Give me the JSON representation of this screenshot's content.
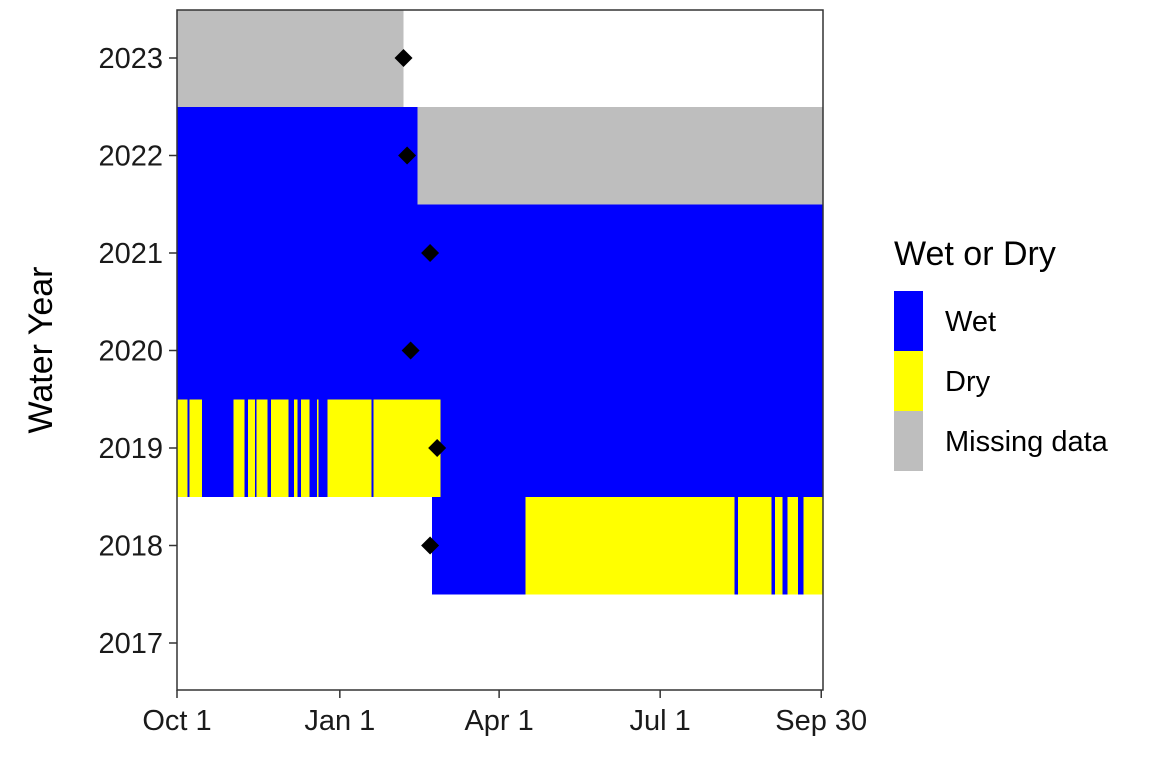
{
  "chart_data": {
    "type": "heatmap",
    "ylabel": "Water Year",
    "xlabel": "",
    "x_ticks": [
      {
        "label": "Oct 1",
        "day": 0
      },
      {
        "label": "Jan 1",
        "day": 92
      },
      {
        "label": "Apr 1",
        "day": 182
      },
      {
        "label": "Jul 1",
        "day": 273
      },
      {
        "label": "Sep 30",
        "day": 364
      }
    ],
    "xlim": [
      0,
      365
    ],
    "years": [
      "2017",
      "2018",
      "2019",
      "2020",
      "2021",
      "2022",
      "2023"
    ],
    "legend": {
      "title": "Wet or Dry",
      "position": "right",
      "items": [
        {
          "key": "wet",
          "label": "Wet",
          "color": "#0000ff"
        },
        {
          "key": "dry",
          "label": "Dry",
          "color": "#ffff00"
        },
        {
          "key": "missing",
          "label": "Missing data",
          "color": "#bebebe"
        }
      ]
    },
    "status_colors": {
      "wet": "#0000ff",
      "dry": "#ffff00",
      "missing": "#bebebe"
    },
    "marker": {
      "shape": "diamond",
      "color": "#000000"
    },
    "rows": [
      {
        "year": "2017",
        "segments": [],
        "marker_day": null
      },
      {
        "year": "2018",
        "segments": [
          {
            "start": 144,
            "end": 197,
            "status": "wet"
          },
          {
            "start": 197,
            "end": 315,
            "status": "dry"
          },
          {
            "start": 315,
            "end": 317,
            "status": "wet"
          },
          {
            "start": 317,
            "end": 336,
            "status": "dry"
          },
          {
            "start": 336,
            "end": 338,
            "status": "wet"
          },
          {
            "start": 338,
            "end": 342,
            "status": "dry"
          },
          {
            "start": 342,
            "end": 345,
            "status": "wet"
          },
          {
            "start": 345,
            "end": 351,
            "status": "dry"
          },
          {
            "start": 351,
            "end": 354,
            "status": "wet"
          },
          {
            "start": 354,
            "end": 365,
            "status": "dry"
          }
        ],
        "marker_day": 143
      },
      {
        "year": "2019",
        "segments": [
          {
            "start": 0,
            "end": 6,
            "status": "dry"
          },
          {
            "start": 6,
            "end": 7,
            "status": "wet"
          },
          {
            "start": 7,
            "end": 14,
            "status": "dry"
          },
          {
            "start": 14,
            "end": 32,
            "status": "wet"
          },
          {
            "start": 32,
            "end": 38,
            "status": "dry"
          },
          {
            "start": 38,
            "end": 40,
            "status": "wet"
          },
          {
            "start": 40,
            "end": 44,
            "status": "dry"
          },
          {
            "start": 44,
            "end": 45,
            "status": "wet"
          },
          {
            "start": 45,
            "end": 51,
            "status": "dry"
          },
          {
            "start": 51,
            "end": 53,
            "status": "wet"
          },
          {
            "start": 53,
            "end": 63,
            "status": "dry"
          },
          {
            "start": 63,
            "end": 66,
            "status": "wet"
          },
          {
            "start": 66,
            "end": 68,
            "status": "dry"
          },
          {
            "start": 68,
            "end": 70,
            "status": "wet"
          },
          {
            "start": 70,
            "end": 75,
            "status": "dry"
          },
          {
            "start": 75,
            "end": 79,
            "status": "wet"
          },
          {
            "start": 79,
            "end": 80,
            "status": "dry"
          },
          {
            "start": 80,
            "end": 85,
            "status": "wet"
          },
          {
            "start": 85,
            "end": 110,
            "status": "dry"
          },
          {
            "start": 110,
            "end": 111,
            "status": "wet"
          },
          {
            "start": 111,
            "end": 149,
            "status": "dry"
          },
          {
            "start": 149,
            "end": 365,
            "status": "wet"
          }
        ],
        "marker_day": 147
      },
      {
        "year": "2020",
        "segments": [
          {
            "start": 0,
            "end": 365,
            "status": "wet"
          }
        ],
        "marker_day": 132
      },
      {
        "year": "2021",
        "segments": [
          {
            "start": 0,
            "end": 365,
            "status": "wet"
          }
        ],
        "marker_day": 143
      },
      {
        "year": "2022",
        "segments": [
          {
            "start": 0,
            "end": 136,
            "status": "wet"
          },
          {
            "start": 136,
            "end": 365,
            "status": "missing"
          }
        ],
        "marker_day": 130
      },
      {
        "year": "2023",
        "segments": [
          {
            "start": 0,
            "end": 128,
            "status": "missing"
          }
        ],
        "marker_day": 128
      }
    ]
  }
}
